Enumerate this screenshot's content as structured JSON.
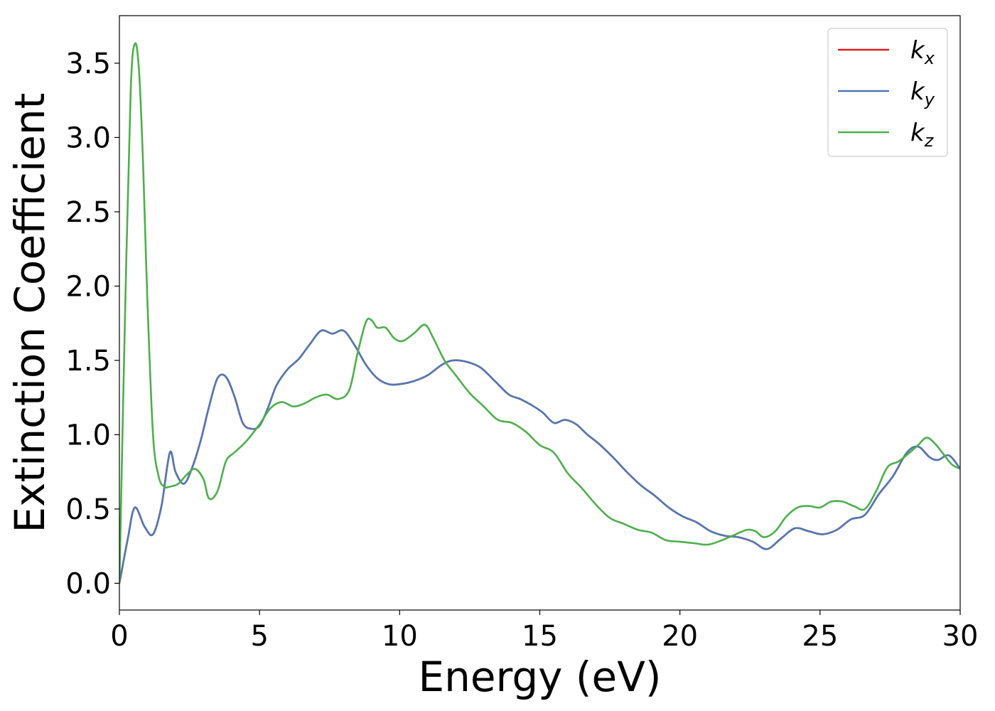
{
  "chart_data": {
    "type": "line",
    "xlabel": "Energy (eV)",
    "ylabel": "Extinction Coefficient",
    "xlim": [
      0,
      30
    ],
    "ylim": [
      -0.18,
      3.82
    ],
    "xticks": [
      0,
      5,
      10,
      15,
      20,
      25,
      30
    ],
    "xtick_labels": [
      "0",
      "5",
      "10",
      "15",
      "20",
      "25",
      "30"
    ],
    "yticks": [
      0.0,
      0.5,
      1.0,
      1.5,
      2.0,
      2.5,
      3.0,
      3.5
    ],
    "ytick_labels": [
      "0.0",
      "0.5",
      "1.0",
      "1.5",
      "2.0",
      "2.5",
      "3.0",
      "3.5"
    ],
    "grid": false,
    "legend_position": "top-right",
    "series": [
      {
        "name": "k",
        "subscript": "x",
        "color": "#e41a1c",
        "x": [
          0,
          0.3,
          0.55,
          0.9,
          1.2,
          1.5,
          1.8,
          2.0,
          2.3,
          2.6,
          2.9,
          3.2,
          3.5,
          3.8,
          4.1,
          4.4,
          4.7,
          5.0,
          5.3,
          5.6,
          6.0,
          6.4,
          6.8,
          7.2,
          7.6,
          8.0,
          8.4,
          8.8,
          9.2,
          9.6,
          10.0,
          10.5,
          11.0,
          11.5,
          11.9,
          12.4,
          12.9,
          13.4,
          13.9,
          14.3,
          14.7,
          15.1,
          15.5,
          15.9,
          16.3,
          16.7,
          17.1,
          17.6,
          18.1,
          18.6,
          19.1,
          19.6,
          20.1,
          20.6,
          21.1,
          21.6,
          22.1,
          22.6,
          23.1,
          23.6,
          24.1,
          24.6,
          25.1,
          25.6,
          26.1,
          26.6,
          27.1,
          27.6,
          28.1,
          28.5,
          28.9,
          29.2,
          29.6,
          30.0
        ],
        "y": [
          0.0,
          0.3,
          0.51,
          0.38,
          0.33,
          0.52,
          0.88,
          0.75,
          0.67,
          0.78,
          0.96,
          1.19,
          1.38,
          1.39,
          1.26,
          1.08,
          1.04,
          1.06,
          1.18,
          1.33,
          1.44,
          1.51,
          1.61,
          1.7,
          1.68,
          1.7,
          1.6,
          1.47,
          1.38,
          1.34,
          1.34,
          1.36,
          1.4,
          1.47,
          1.5,
          1.49,
          1.45,
          1.36,
          1.27,
          1.24,
          1.2,
          1.15,
          1.08,
          1.1,
          1.07,
          1.0,
          0.94,
          0.85,
          0.75,
          0.66,
          0.59,
          0.51,
          0.45,
          0.41,
          0.35,
          0.32,
          0.31,
          0.28,
          0.23,
          0.3,
          0.37,
          0.35,
          0.33,
          0.36,
          0.43,
          0.46,
          0.6,
          0.72,
          0.88,
          0.92,
          0.85,
          0.83,
          0.86,
          0.77
        ]
      },
      {
        "name": "k",
        "subscript": "y",
        "color": "#4e79b3",
        "x": [
          0,
          0.3,
          0.55,
          0.9,
          1.2,
          1.5,
          1.8,
          2.0,
          2.3,
          2.6,
          2.9,
          3.2,
          3.5,
          3.8,
          4.1,
          4.4,
          4.7,
          5.0,
          5.3,
          5.6,
          6.0,
          6.4,
          6.8,
          7.2,
          7.6,
          8.0,
          8.4,
          8.8,
          9.2,
          9.6,
          10.0,
          10.5,
          11.0,
          11.5,
          11.9,
          12.4,
          12.9,
          13.4,
          13.9,
          14.3,
          14.7,
          15.1,
          15.5,
          15.9,
          16.3,
          16.7,
          17.1,
          17.6,
          18.1,
          18.6,
          19.1,
          19.6,
          20.1,
          20.6,
          21.1,
          21.6,
          22.1,
          22.6,
          23.1,
          23.6,
          24.1,
          24.6,
          25.1,
          25.6,
          26.1,
          26.6,
          27.1,
          27.6,
          28.1,
          28.5,
          28.9,
          29.2,
          29.6,
          30.0
        ],
        "y": [
          0.0,
          0.3,
          0.51,
          0.38,
          0.33,
          0.52,
          0.88,
          0.75,
          0.67,
          0.78,
          0.96,
          1.19,
          1.38,
          1.39,
          1.26,
          1.08,
          1.04,
          1.06,
          1.18,
          1.33,
          1.44,
          1.51,
          1.61,
          1.7,
          1.68,
          1.7,
          1.6,
          1.47,
          1.38,
          1.34,
          1.34,
          1.36,
          1.4,
          1.47,
          1.5,
          1.49,
          1.45,
          1.36,
          1.27,
          1.24,
          1.2,
          1.15,
          1.08,
          1.1,
          1.07,
          1.0,
          0.94,
          0.85,
          0.75,
          0.66,
          0.59,
          0.51,
          0.45,
          0.41,
          0.35,
          0.32,
          0.31,
          0.28,
          0.23,
          0.3,
          0.37,
          0.35,
          0.33,
          0.36,
          0.43,
          0.46,
          0.6,
          0.72,
          0.88,
          0.92,
          0.85,
          0.83,
          0.86,
          0.77
        ]
      },
      {
        "name": "k",
        "subscript": "z",
        "color": "#4daf4a",
        "x": [
          0,
          0.2,
          0.4,
          0.55,
          0.7,
          0.85,
          1.0,
          1.2,
          1.4,
          1.6,
          1.8,
          2.1,
          2.4,
          2.7,
          3.0,
          3.2,
          3.5,
          3.8,
          4.1,
          4.5,
          5.0,
          5.4,
          5.8,
          6.2,
          6.6,
          7.0,
          7.4,
          7.8,
          8.2,
          8.5,
          8.8,
          9.0,
          9.2,
          9.5,
          9.8,
          10.1,
          10.5,
          10.9,
          11.2,
          11.6,
          12.0,
          12.5,
          13.0,
          13.5,
          14.0,
          14.5,
          15.0,
          15.5,
          16.0,
          16.5,
          17.0,
          17.5,
          18.0,
          18.5,
          19.0,
          19.5,
          20.0,
          20.5,
          21.0,
          21.5,
          22.0,
          22.4,
          22.7,
          23.0,
          23.4,
          23.8,
          24.2,
          24.6,
          25.0,
          25.4,
          25.8,
          26.2,
          26.6,
          27.0,
          27.4,
          27.8,
          28.2,
          28.5,
          28.8,
          29.1,
          29.4,
          29.7,
          30.0
        ],
        "y": [
          0.0,
          1.8,
          3.3,
          3.63,
          3.45,
          2.8,
          1.9,
          1.0,
          0.72,
          0.65,
          0.65,
          0.67,
          0.73,
          0.77,
          0.7,
          0.57,
          0.62,
          0.82,
          0.88,
          0.95,
          1.07,
          1.18,
          1.22,
          1.19,
          1.21,
          1.25,
          1.27,
          1.24,
          1.3,
          1.55,
          1.76,
          1.77,
          1.72,
          1.72,
          1.65,
          1.63,
          1.68,
          1.74,
          1.65,
          1.5,
          1.4,
          1.28,
          1.19,
          1.1,
          1.08,
          1.02,
          0.93,
          0.88,
          0.74,
          0.64,
          0.53,
          0.44,
          0.4,
          0.36,
          0.34,
          0.29,
          0.28,
          0.27,
          0.26,
          0.29,
          0.33,
          0.36,
          0.35,
          0.31,
          0.35,
          0.45,
          0.51,
          0.52,
          0.51,
          0.55,
          0.55,
          0.52,
          0.5,
          0.62,
          0.78,
          0.82,
          0.88,
          0.93,
          0.98,
          0.94,
          0.87,
          0.8,
          0.77
        ]
      }
    ]
  }
}
